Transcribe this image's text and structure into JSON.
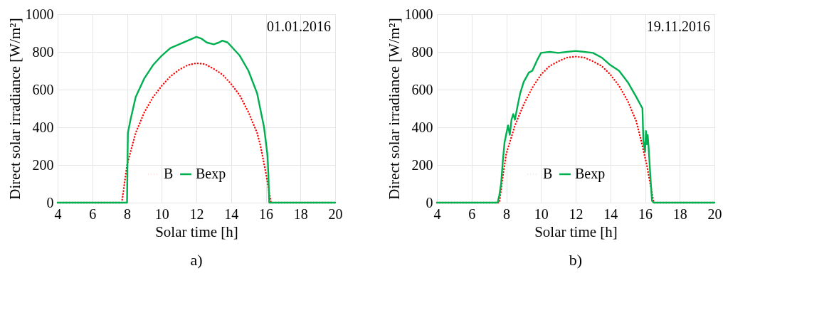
{
  "chart_data": [
    {
      "type": "line",
      "title": "a)",
      "xlabel": "Solar time [h]",
      "ylabel": "Direct solar irradiance [W/m²]",
      "annotations": [
        "01.01.2016"
      ],
      "xlim": [
        4,
        20
      ],
      "xticks": [
        4,
        6,
        8,
        10,
        12,
        14,
        16,
        18,
        20
      ],
      "ylim": [
        0,
        1000
      ],
      "yticks": [
        0,
        200,
        400,
        600,
        800,
        1000
      ],
      "grid": true,
      "legend": "bottom",
      "series": [
        {
          "name": "B",
          "color": "#ff0000",
          "line_style": "dotted",
          "x": [
            4,
            7.7,
            7.85,
            8,
            8.5,
            9,
            9.5,
            10,
            10.5,
            11,
            11.5,
            12,
            12.5,
            13,
            13.5,
            14,
            14.5,
            15,
            15.5,
            15.7,
            16,
            16.15,
            16.3,
            20
          ],
          "values": [
            0,
            0,
            100,
            200,
            370,
            480,
            560,
            620,
            670,
            705,
            730,
            740,
            735,
            710,
            680,
            630,
            570,
            480,
            370,
            300,
            160,
            80,
            0,
            0
          ]
        },
        {
          "name": "Bexp",
          "color": "#00b050",
          "line_style": "solid",
          "x": [
            4,
            8,
            8.05,
            8.2,
            8.5,
            9,
            9.5,
            10,
            10.5,
            11,
            11.5,
            12,
            12.3,
            12.6,
            13,
            13.3,
            13.5,
            13.8,
            14,
            14.5,
            15,
            15.5,
            15.9,
            16.1,
            16.15,
            16.2,
            20
          ],
          "values": [
            0,
            0,
            370,
            440,
            560,
            660,
            730,
            780,
            820,
            840,
            860,
            880,
            870,
            850,
            840,
            850,
            860,
            850,
            830,
            780,
            700,
            580,
            400,
            250,
            150,
            0,
            0
          ]
        }
      ]
    },
    {
      "type": "line",
      "title": "b)",
      "xlabel": "Solar time [h]",
      "ylabel": "Direct solar irradiance [W/m²]",
      "annotations": [
        "19.11.2016"
      ],
      "xlim": [
        4,
        20
      ],
      "xticks": [
        4,
        6,
        8,
        10,
        12,
        14,
        16,
        18,
        20
      ],
      "ylim": [
        0,
        1000
      ],
      "yticks": [
        0,
        200,
        400,
        600,
        800,
        1000
      ],
      "grid": true,
      "legend": "bottom",
      "series": [
        {
          "name": "B",
          "color": "#ff0000",
          "line_style": "dotted",
          "x": [
            4,
            7.6,
            7.8,
            8,
            8.5,
            9,
            9.5,
            10,
            10.5,
            11,
            11.5,
            12,
            12.5,
            13,
            13.5,
            14,
            14.5,
            15,
            15.5,
            15.8,
            16.1,
            16.3,
            16.5,
            20
          ],
          "values": [
            0,
            0,
            140,
            260,
            410,
            520,
            610,
            680,
            725,
            750,
            770,
            775,
            770,
            750,
            725,
            680,
            620,
            540,
            430,
            320,
            200,
            100,
            0,
            0
          ]
        },
        {
          "name": "Bexp",
          "color": "#00b050",
          "line_style": "solid",
          "x": [
            4,
            7.5,
            7.6,
            7.7,
            7.8,
            7.9,
            8.1,
            8.2,
            8.3,
            8.4,
            8.5,
            8.6,
            8.8,
            9,
            9.3,
            9.5,
            9.8,
            10,
            10.5,
            11,
            11.5,
            12,
            12.5,
            13,
            13.5,
            14,
            14.5,
            15,
            15.5,
            15.85,
            15.9,
            16,
            16.05,
            16.1,
            16.15,
            16.2,
            16.3,
            16.4,
            16.5,
            20
          ],
          "values": [
            0,
            0,
            40,
            100,
            220,
            320,
            410,
            360,
            440,
            470,
            440,
            490,
            580,
            640,
            690,
            700,
            760,
            795,
            800,
            795,
            800,
            805,
            800,
            795,
            770,
            730,
            700,
            640,
            560,
            500,
            330,
            270,
            380,
            310,
            360,
            300,
            150,
            10,
            0,
            0
          ]
        }
      ]
    }
  ]
}
